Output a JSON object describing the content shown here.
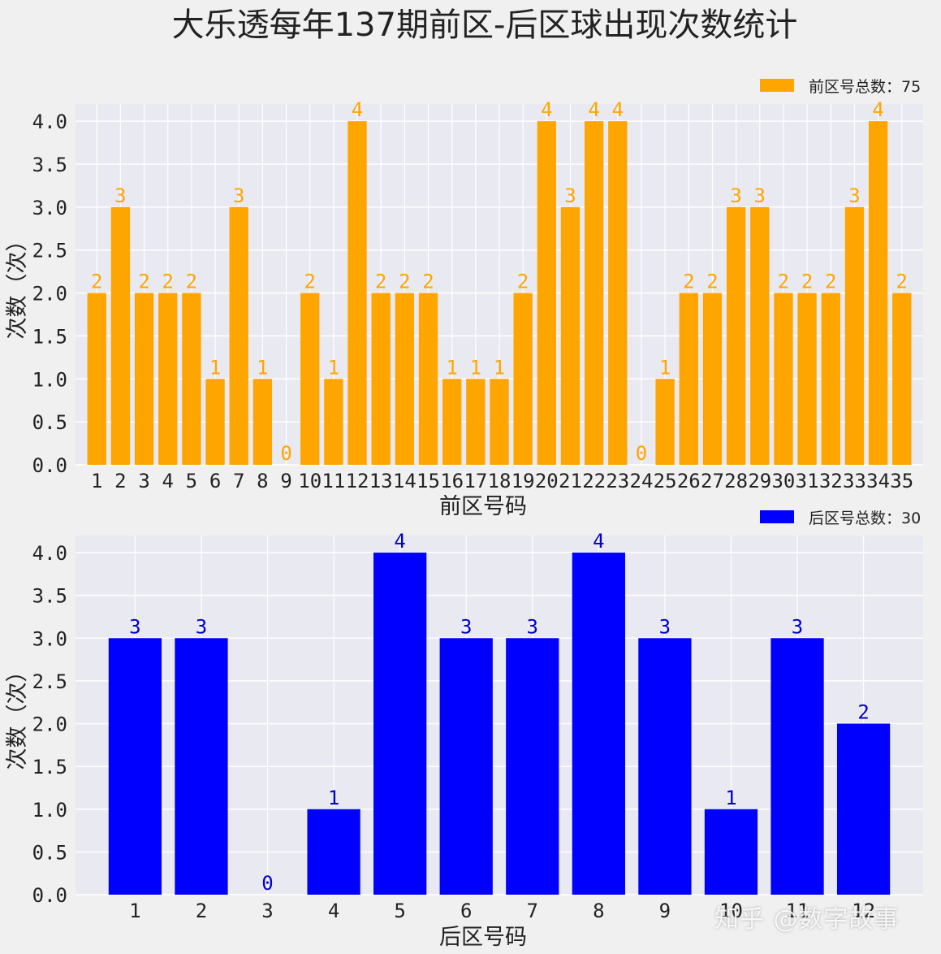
{
  "title": "大乐透每年137期前区-后区球出现次数统计",
  "watermark": "知乎 @数字故事",
  "chart_data": [
    {
      "type": "bar",
      "name": "front",
      "color": "#FFA500",
      "label_color": "#FFA500",
      "xlabel": "前区号码",
      "ylabel": "次数（次）",
      "legend": "前区号总数：75",
      "legend_position": "top-right",
      "ylim": [
        0,
        4.2
      ],
      "yticks": [
        "0.0",
        "0.5",
        "1.0",
        "1.5",
        "2.0",
        "2.5",
        "3.0",
        "3.5",
        "4.0"
      ],
      "categories": [
        "1",
        "2",
        "3",
        "4",
        "5",
        "6",
        "7",
        "8",
        "9",
        "10",
        "11",
        "12",
        "13",
        "14",
        "15",
        "16",
        "17",
        "18",
        "19",
        "20",
        "21",
        "22",
        "23",
        "24",
        "25",
        "26",
        "27",
        "28",
        "29",
        "30",
        "31",
        "32",
        "33",
        "34",
        "35"
      ],
      "values": [
        2,
        3,
        2,
        2,
        2,
        1,
        3,
        1,
        0,
        2,
        1,
        4,
        2,
        2,
        2,
        1,
        1,
        1,
        2,
        4,
        3,
        4,
        4,
        0,
        1,
        2,
        2,
        3,
        3,
        2,
        2,
        2,
        3,
        4,
        2
      ]
    },
    {
      "type": "bar",
      "name": "back",
      "color": "#0000FF",
      "label_color": "#0000CC",
      "xlabel": "后区号码",
      "ylabel": "次数（次）",
      "legend": "后区号总数：30",
      "legend_position": "top-right",
      "ylim": [
        0,
        4.2
      ],
      "yticks": [
        "0.0",
        "0.5",
        "1.0",
        "1.5",
        "2.0",
        "2.5",
        "3.0",
        "3.5",
        "4.0"
      ],
      "categories": [
        "1",
        "2",
        "3",
        "4",
        "5",
        "6",
        "7",
        "8",
        "9",
        "10",
        "11",
        "12"
      ],
      "values": [
        3,
        3,
        0,
        1,
        4,
        3,
        3,
        4,
        3,
        1,
        3,
        2
      ]
    }
  ]
}
